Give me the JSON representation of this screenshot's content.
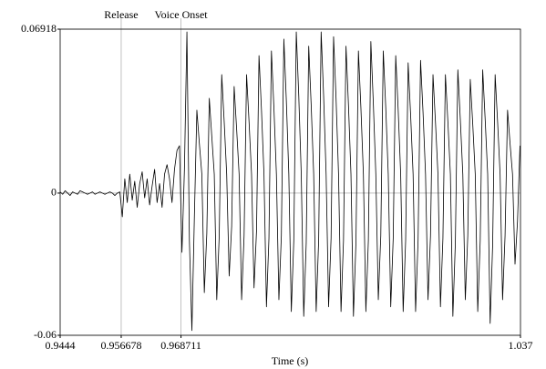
{
  "chart_data": {
    "type": "line",
    "xlabel": "Time (s)",
    "xlim": [
      0.9444,
      1.037
    ],
    "xticks": [
      0.9444,
      0.956678,
      0.968711,
      1.037
    ],
    "ylim": [
      -0.06,
      0.06918
    ],
    "yticks": [
      0.06918,
      0,
      -0.06
    ],
    "grid": true,
    "color": "#000000",
    "annotations": [
      {
        "label": "Release",
        "x": 0.956678
      },
      {
        "label": "Voice Onset",
        "x": 0.968711
      }
    ],
    "x": [
      0.9444,
      0.9449,
      0.9454,
      0.9459,
      0.9464,
      0.9469,
      0.9474,
      0.9479,
      0.9484,
      0.9489,
      0.9494,
      0.9499,
      0.9504,
      0.9509,
      0.9514,
      0.9519,
      0.9524,
      0.9529,
      0.9534,
      0.9539,
      0.9544,
      0.9549,
      0.9554,
      0.9559,
      0.9564,
      0.9569,
      0.9574,
      0.9579,
      0.9584,
      0.9589,
      0.9594,
      0.9599,
      0.9604,
      0.9609,
      0.9614,
      0.9619,
      0.9624,
      0.9629,
      0.9634,
      0.9639,
      0.9644,
      0.9649,
      0.9654,
      0.9659,
      0.9664,
      0.9669,
      0.9674,
      0.9679,
      0.9684,
      0.9689,
      0.9694,
      0.9699,
      0.9704,
      0.9709,
      0.9714,
      0.9719,
      0.9724,
      0.9729,
      0.9734,
      0.9739,
      0.9744,
      0.9749,
      0.9754,
      0.9759,
      0.9764,
      0.9769,
      0.9774,
      0.9779,
      0.9784,
      0.9789,
      0.9794,
      0.9799,
      0.9804,
      0.9809,
      0.9814,
      0.9819,
      0.9824,
      0.9829,
      0.9834,
      0.9839,
      0.9844,
      0.9849,
      0.9854,
      0.9859,
      0.9864,
      0.9869,
      0.9874,
      0.9879,
      0.9884,
      0.9889,
      0.9894,
      0.9899,
      0.9904,
      0.9909,
      0.9914,
      0.9919,
      0.9924,
      0.9929,
      0.9934,
      0.9939,
      0.9944,
      0.9949,
      0.9954,
      0.9959,
      0.9964,
      0.9969,
      0.9974,
      0.9979,
      0.9984,
      0.9989,
      0.9994,
      0.9999,
      1.0004,
      1.0009,
      1.0014,
      1.0019,
      1.0024,
      1.0029,
      1.0034,
      1.0039,
      1.0044,
      1.0049,
      1.0054,
      1.0059,
      1.0064,
      1.0069,
      1.0074,
      1.0079,
      1.0084,
      1.0089,
      1.0094,
      1.0099,
      1.0104,
      1.0109,
      1.0114,
      1.0119,
      1.0124,
      1.0129,
      1.0134,
      1.0139,
      1.0144,
      1.0149,
      1.0154,
      1.0159,
      1.0164,
      1.0169,
      1.0174,
      1.0179,
      1.0184,
      1.0189,
      1.0194,
      1.0199,
      1.0204,
      1.0209,
      1.0214,
      1.0219,
      1.0224,
      1.0229,
      1.0234,
      1.0239,
      1.0244,
      1.0249,
      1.0254,
      1.0259,
      1.0264,
      1.0269,
      1.0274,
      1.0279,
      1.0284,
      1.0289,
      1.0294,
      1.0299,
      1.0304,
      1.0309,
      1.0314,
      1.0319,
      1.0324,
      1.0329,
      1.0334,
      1.0339,
      1.0344,
      1.0349,
      1.0354,
      1.0359,
      1.0364,
      1.0369
    ],
    "values": [
      0.0005,
      -0.0005,
      0.001,
      0,
      -0.001,
      0.0005,
      0,
      -0.0005,
      0.001,
      0.0005,
      0,
      -0.0005,
      0,
      0.0005,
      -0.0005,
      0,
      0.0005,
      0,
      -0.0005,
      0,
      0.0005,
      0,
      -0.001,
      0,
      0.0005,
      -0.01,
      0.006,
      -0.004,
      0.008,
      -0.003,
      0.005,
      -0.006,
      0.004,
      0.009,
      -0.002,
      0.006,
      -0.005,
      0.003,
      0.01,
      -0.004,
      0.004,
      -0.006,
      0.008,
      0.012,
      0.006,
      -0.004,
      0.01,
      0.018,
      0.02,
      -0.025,
      0.01,
      0.068,
      -0.02,
      -0.058,
      -0.01,
      0.035,
      0.021,
      0.008,
      -0.042,
      -0.017,
      0.04,
      0.024,
      0.008,
      -0.045,
      -0.018,
      0.05,
      0.03,
      0.008,
      -0.035,
      -0.014,
      0.045,
      0.027,
      0.008,
      -0.045,
      -0.018,
      0.05,
      0.03,
      0.008,
      -0.04,
      -0.016,
      0.058,
      0.035,
      0.008,
      -0.048,
      -0.019,
      0.06,
      0.036,
      0.008,
      -0.045,
      -0.018,
      0.065,
      0.039,
      0.008,
      -0.05,
      -0.02,
      0.068,
      0.041,
      0.008,
      -0.052,
      -0.021,
      0.062,
      0.037,
      0.008,
      -0.05,
      -0.02,
      0.068,
      0.041,
      0.008,
      -0.048,
      -0.019,
      0.066,
      0.04,
      0.008,
      -0.05,
      -0.02,
      0.062,
      0.037,
      0.008,
      -0.052,
      -0.021,
      0.06,
      0.036,
      0.008,
      -0.05,
      -0.02,
      0.064,
      0.038,
      0.008,
      -0.045,
      -0.018,
      0.06,
      0.036,
      0.008,
      -0.048,
      -0.019,
      0.058,
      0.035,
      0.008,
      -0.05,
      -0.02,
      0.055,
      0.033,
      0.008,
      -0.05,
      -0.02,
      0.056,
      0.034,
      0.008,
      -0.045,
      -0.018,
      0.05,
      0.03,
      0.008,
      -0.048,
      -0.019,
      0.05,
      0.03,
      0.008,
      -0.052,
      -0.021,
      0.052,
      0.031,
      0.008,
      -0.045,
      -0.018,
      0.048,
      0.029,
      0.008,
      -0.05,
      -0.02,
      0.052,
      0.031,
      0.008,
      -0.055,
      -0.022,
      0.05,
      0.03,
      0.008,
      -0.045,
      -0.018,
      0.035,
      0.021,
      0.008,
      -0.03,
      -0.012,
      0.02
    ]
  }
}
